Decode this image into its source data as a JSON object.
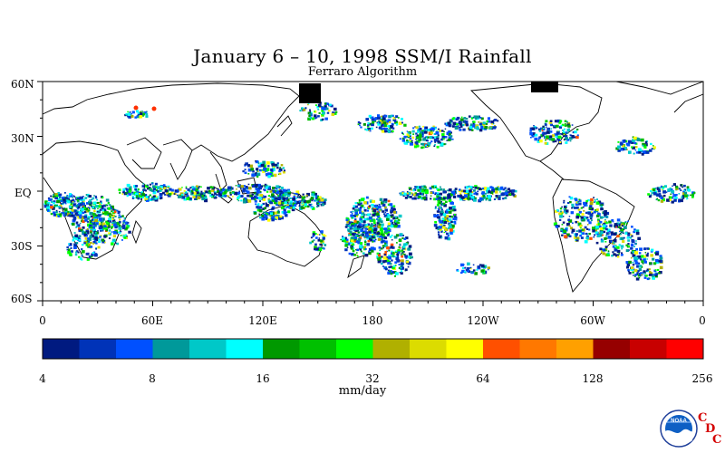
{
  "title": "January 6 – 10, 1998 SSM/I Rainfall",
  "subtitle": "Ferraro Algorithm",
  "lat_labels": [
    "60N",
    "30N",
    "EQ",
    "30S",
    "60S"
  ],
  "lon_labels": [
    "0",
    "60E",
    "120E",
    "180",
    "120W",
    "60W",
    "0"
  ],
  "colorbar": {
    "colors": [
      "#001a80",
      "#0033b8",
      "#0050ff",
      "#00999a",
      "#00c8c8",
      "#00ffff",
      "#009900",
      "#00c000",
      "#00ff00",
      "#b0b000",
      "#dcdc00",
      "#ffff00",
      "#ff5000",
      "#ff7800",
      "#ffa000",
      "#960000",
      "#c80000",
      "#ff0000"
    ],
    "tick_labels": [
      "4",
      "8",
      "16",
      "32",
      "64",
      "128",
      "256"
    ]
  },
  "units": "mm/day",
  "logos": {
    "noaa": "NOAA",
    "cdc": [
      "C",
      "D",
      "C"
    ]
  }
}
